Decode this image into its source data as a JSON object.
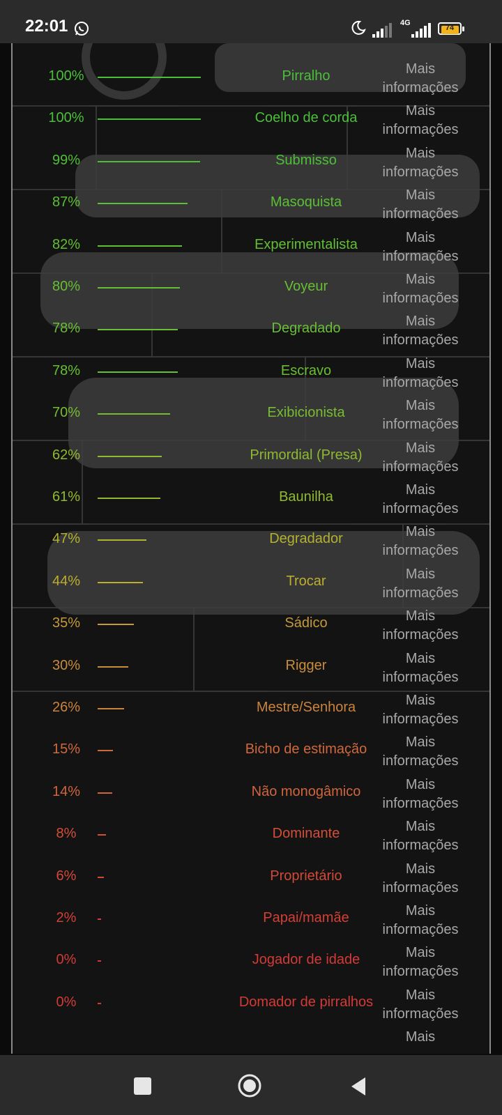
{
  "status_bar": {
    "time": "22:01",
    "network": "4G",
    "battery": "74",
    "icons": [
      "whatsapp-icon",
      "moon-icon",
      "signal-icon",
      "signal-icon",
      "battery-icon"
    ]
  },
  "results": {
    "more_line1": "Mais",
    "more_line2": "informações",
    "items": [
      {
        "percent": "100%",
        "value": 100,
        "label": "Pirralho",
        "color": "#4bbf3a"
      },
      {
        "percent": "100%",
        "value": 100,
        "label": "Coelho de corda",
        "color": "#4bbf3a"
      },
      {
        "percent": "99%",
        "value": 99,
        "label": "Submisso",
        "color": "#4fbf38"
      },
      {
        "percent": "87%",
        "value": 87,
        "label": "Masoquista",
        "color": "#5cbf35"
      },
      {
        "percent": "82%",
        "value": 82,
        "label": "Experimentalista",
        "color": "#62bf34"
      },
      {
        "percent": "80%",
        "value": 80,
        "label": "Voyeur",
        "color": "#65bf33"
      },
      {
        "percent": "78%",
        "value": 78,
        "label": "Degradado",
        "color": "#68bf33"
      },
      {
        "percent": "78%",
        "value": 78,
        "label": "Escravo",
        "color": "#68bf33"
      },
      {
        "percent": "70%",
        "value": 70,
        "label": "Exibicionista",
        "color": "#78bd31"
      },
      {
        "percent": "62%",
        "value": 62,
        "label": "Primordial (Presa)",
        "color": "#8fba30"
      },
      {
        "percent": "61%",
        "value": 61,
        "label": "Baunilha",
        "color": "#92ba30"
      },
      {
        "percent": "47%",
        "value": 47,
        "label": "Degradador",
        "color": "#b3b22e"
      },
      {
        "percent": "44%",
        "value": 44,
        "label": "Trocar",
        "color": "#bcae2e"
      },
      {
        "percent": "35%",
        "value": 35,
        "label": "Sádico",
        "color": "#c49a3a"
      },
      {
        "percent": "30%",
        "value": 30,
        "label": "Rigger",
        "color": "#c88d3c"
      },
      {
        "percent": "26%",
        "value": 26,
        "label": "Mestre/Senhora",
        "color": "#cb833d"
      },
      {
        "percent": "15%",
        "value": 15,
        "label": "Bicho de estimação",
        "color": "#d0683d"
      },
      {
        "percent": "14%",
        "value": 14,
        "label": "Não monogâmico",
        "color": "#d0653d"
      },
      {
        "percent": "8%",
        "value": 8,
        "label": "Dominante",
        "color": "#d24f3a"
      },
      {
        "percent": "6%",
        "value": 6,
        "label": "Proprietário",
        "color": "#d24938"
      },
      {
        "percent": "2%",
        "value": 2,
        "label": "Papai/mamãe",
        "color": "#d43f36"
      },
      {
        "percent": "0%",
        "value": 0,
        "label": "Jogador de idade",
        "color": "#d43a35"
      },
      {
        "percent": "0%",
        "value": 0,
        "label": "Domador de pirralhos",
        "color": "#d43a35"
      }
    ]
  },
  "navigation": {
    "icons": [
      "recent-apps-icon",
      "home-icon",
      "back-icon"
    ]
  }
}
